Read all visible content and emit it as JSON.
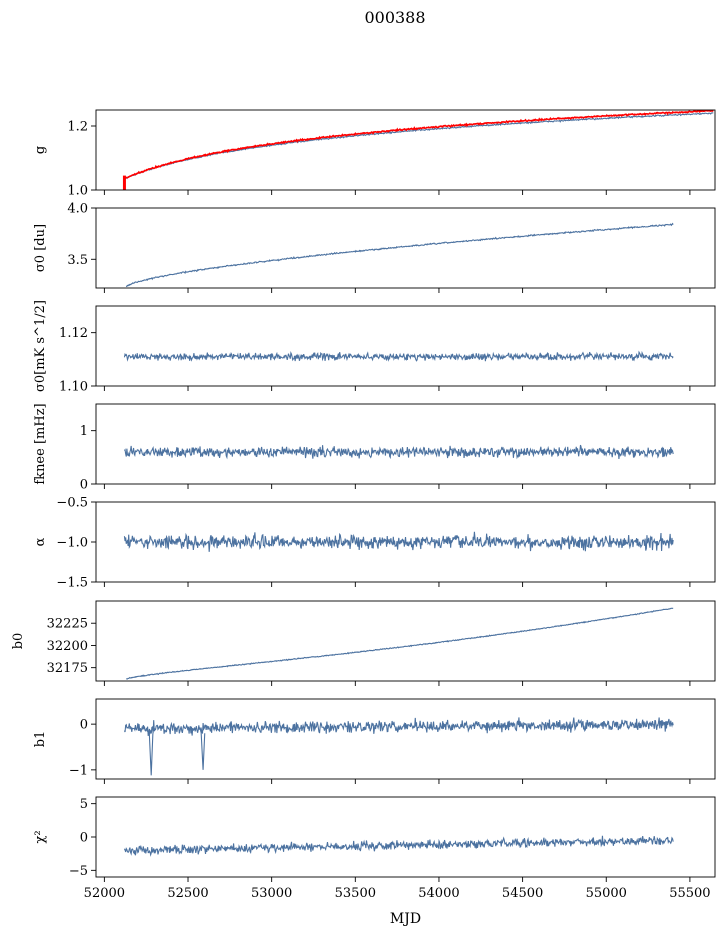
{
  "figure": {
    "title": "000388",
    "xlabel": "MJD"
  },
  "chart_data": [
    {
      "type": "line",
      "ylabel": "g",
      "xlim": [
        51950,
        55650
      ],
      "ylim": [
        1.0,
        1.25
      ],
      "yticks": [
        1.0,
        1.2
      ],
      "ytick_labels": [
        "1.0",
        "1.2"
      ],
      "x_start": 52120,
      "x_end": 55640,
      "series": [
        {
          "color": "#4c72a0",
          "shape": "log",
          "start": 1.035,
          "end": 1.24,
          "noise": 0.002
        },
        {
          "color": "#ff0000",
          "shape": "log",
          "start": 1.035,
          "end": 1.248,
          "noise": 0.002
        }
      ],
      "extras": {
        "red_spike": {
          "x": 52120,
          "y_from": 1.0,
          "y_to": 1.045
        }
      }
    },
    {
      "type": "line",
      "ylabel": "σ0 [du]",
      "xlim": [
        51950,
        55650
      ],
      "ylim": [
        3.22,
        4.0
      ],
      "yticks": [
        3.5,
        4.0
      ],
      "ytick_labels": [
        "3.5",
        "4.0"
      ],
      "x_start": 52130,
      "x_end": 55400,
      "series": [
        {
          "color": "#4c72a0",
          "shape": "sqrt",
          "start": 3.23,
          "end": 3.84,
          "noise": 0.006
        }
      ]
    },
    {
      "type": "line",
      "ylabel": "σ0[mK s^1/2]",
      "xlim": [
        51950,
        55650
      ],
      "ylim": [
        1.1,
        1.13
      ],
      "yticks": [
        1.1,
        1.12
      ],
      "ytick_labels": [
        "1.10",
        "1.12"
      ],
      "x_start": 52120,
      "x_end": 55400,
      "series": [
        {
          "color": "#4c72a0",
          "shape": "flat",
          "start": 1.111,
          "end": 1.111,
          "noise": 0.0012
        }
      ]
    },
    {
      "type": "line",
      "ylabel": "fknee [mHz]",
      "xlim": [
        51950,
        55650
      ],
      "ylim": [
        0,
        1.5
      ],
      "yticks": [
        0,
        1
      ],
      "ytick_labels": [
        "0",
        "1"
      ],
      "x_start": 52120,
      "x_end": 55400,
      "series": [
        {
          "color": "#4c72a0",
          "shape": "flat",
          "start": 0.6,
          "end": 0.6,
          "noise": 0.09
        }
      ]
    },
    {
      "type": "line",
      "ylabel": "α",
      "xlim": [
        51950,
        55650
      ],
      "ylim": [
        -1.5,
        -0.5
      ],
      "yticks": [
        -1.5,
        -1.0,
        -0.5
      ],
      "ytick_labels": [
        "−1.5",
        "−1.0",
        "−0.5"
      ],
      "x_start": 52120,
      "x_end": 55400,
      "series": [
        {
          "color": "#4c72a0",
          "shape": "flat",
          "start": -1.0,
          "end": -1.0,
          "noise": 0.08
        }
      ]
    },
    {
      "type": "line",
      "ylabel": "b0",
      "xlim": [
        51950,
        55650
      ],
      "ylim": [
        32160,
        32250
      ],
      "yticks": [
        32175,
        32200,
        32225
      ],
      "ytick_labels": [
        "32175",
        "32200",
        "32225"
      ],
      "x_start": 52130,
      "x_end": 55400,
      "series": [
        {
          "color": "#4c72a0",
          "shape": "steps",
          "start": 32162,
          "end": 32242,
          "noise": 0.5
        }
      ]
    },
    {
      "type": "line",
      "ylabel": "b1",
      "xlim": [
        51950,
        55650
      ],
      "ylim": [
        -1.2,
        0.55
      ],
      "yticks": [
        -1,
        0
      ],
      "ytick_labels": [
        "−1",
        "0"
      ],
      "x_start": 52120,
      "x_end": 55400,
      "series": [
        {
          "color": "#4c72a0",
          "shape": "flat",
          "start": -0.1,
          "end": 0.0,
          "noise": 0.12
        }
      ],
      "extras": {
        "dips": [
          {
            "x": 52280,
            "y": -1.12
          },
          {
            "x": 52590,
            "y": -1.0
          }
        ]
      }
    },
    {
      "type": "line",
      "ylabel": "χ²",
      "xlim": [
        51950,
        55650
      ],
      "ylim": [
        -6,
        6
      ],
      "yticks": [
        -5,
        0,
        5
      ],
      "ytick_labels": [
        "−5",
        "0",
        "5"
      ],
      "xticks": [
        52000,
        52500,
        53000,
        53500,
        54000,
        54500,
        55000,
        55500
      ],
      "xtick_labels": [
        "52000",
        "52500",
        "53000",
        "53500",
        "54000",
        "54500",
        "55000",
        "55500"
      ],
      "x_start": 52120,
      "x_end": 55400,
      "series": [
        {
          "color": "#4c72a0",
          "shape": "linear",
          "start": -2.0,
          "end": -0.5,
          "noise": 0.6
        }
      ]
    }
  ]
}
